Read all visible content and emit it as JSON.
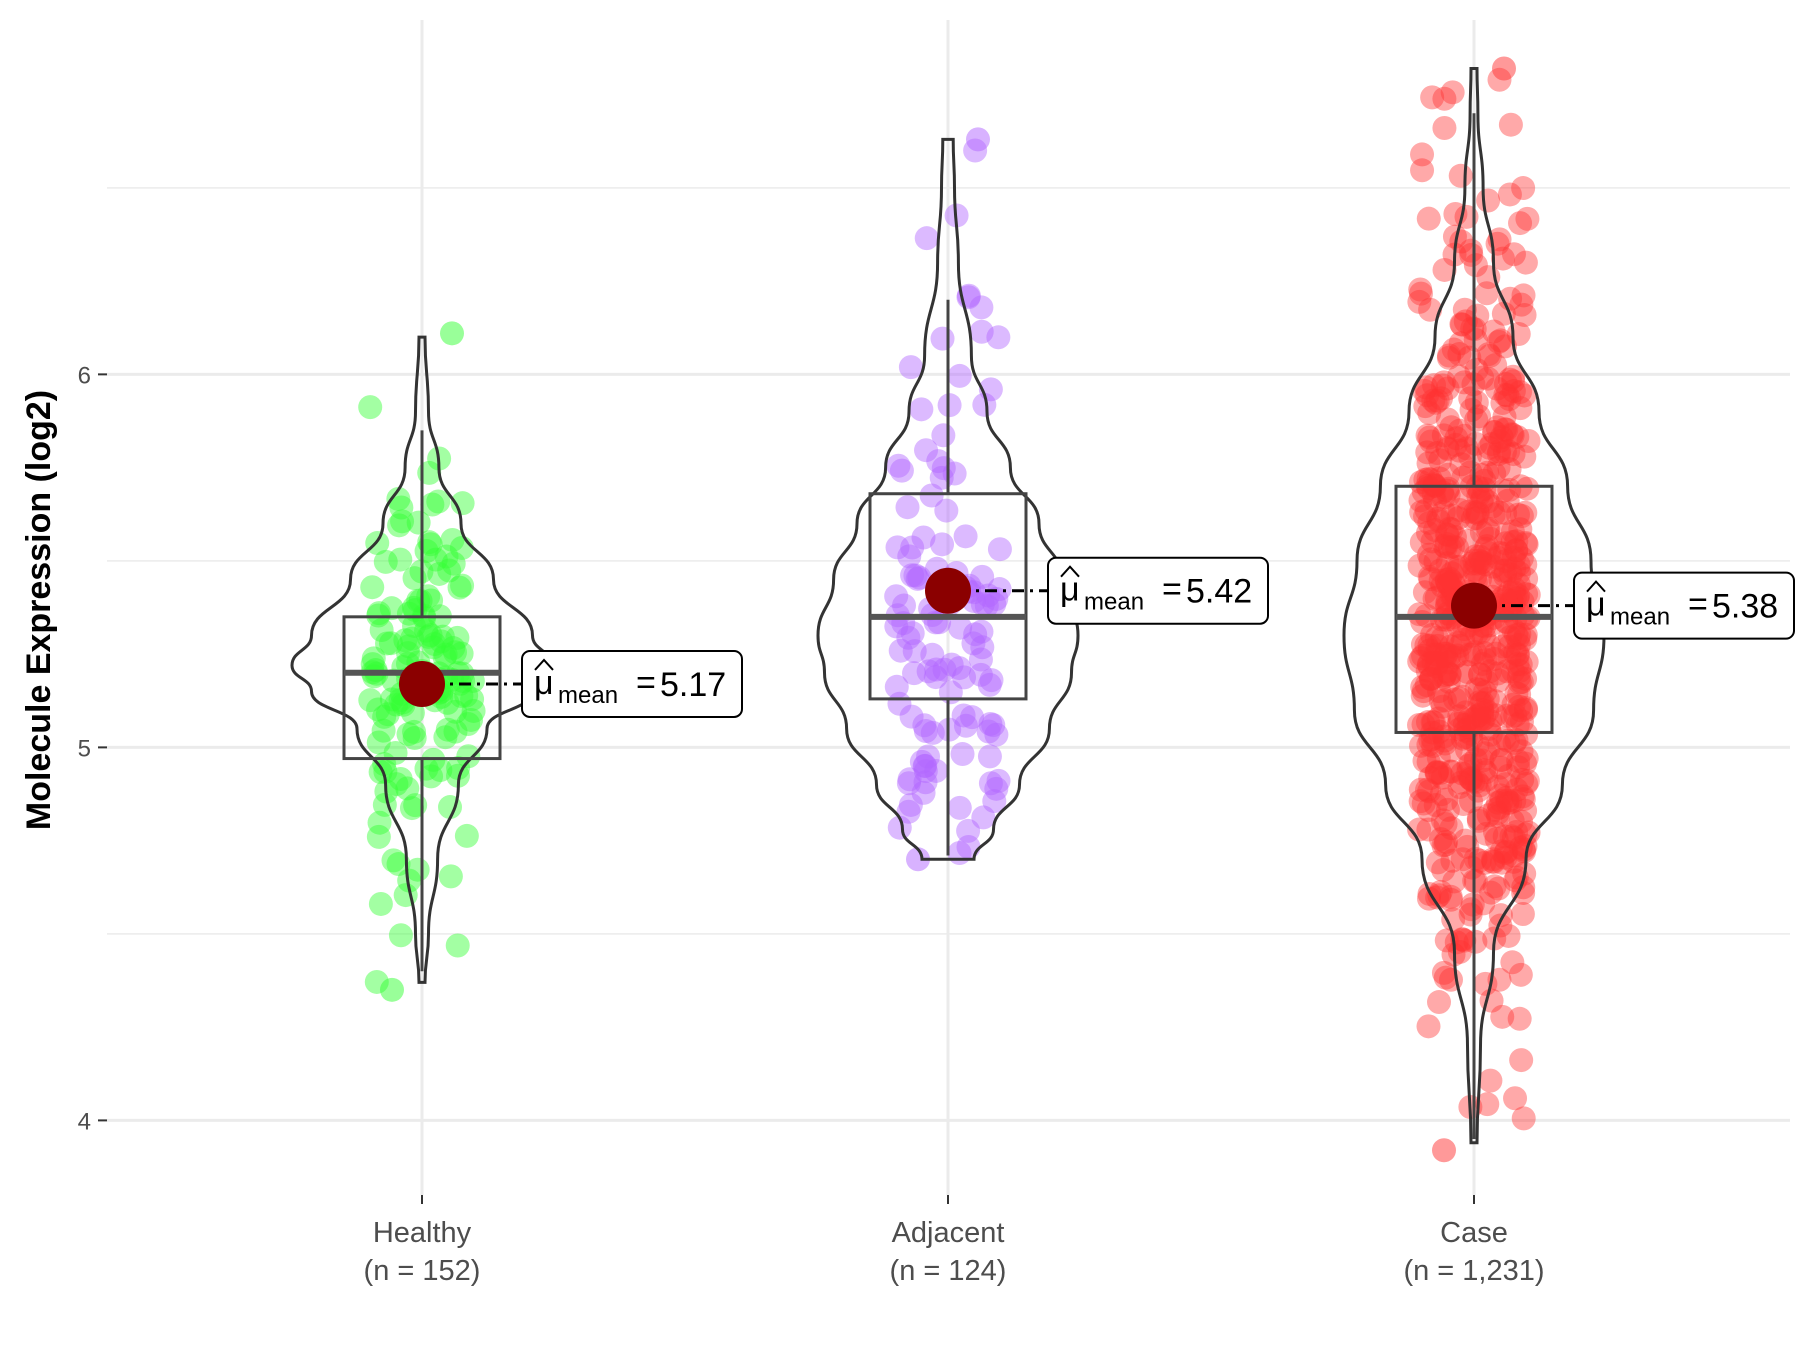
{
  "chart_data": {
    "type": "violin",
    "ylabel": "Molecule Expression (log2)",
    "xlabel": "",
    "ylim": [
      3.8,
      6.95
    ],
    "yticks": [
      4,
      5,
      6
    ],
    "grid": true,
    "groups": [
      {
        "name": "Healthy",
        "n_label": "(n = 152)",
        "n": 152,
        "color": "#33ff33",
        "mean": 5.17,
        "mean_label": "5.17",
        "median": 5.2,
        "q1": 4.97,
        "q3": 5.35,
        "whisker_low": 4.4,
        "whisker_high": 5.85,
        "min": 4.35,
        "max": 6.11,
        "violin_profile": [
          [
            4.37,
            0.02
          ],
          [
            4.5,
            0.05
          ],
          [
            4.7,
            0.12
          ],
          [
            4.9,
            0.28
          ],
          [
            5.05,
            0.5
          ],
          [
            5.15,
            0.85
          ],
          [
            5.22,
            1.0
          ],
          [
            5.3,
            0.85
          ],
          [
            5.45,
            0.55
          ],
          [
            5.6,
            0.3
          ],
          [
            5.75,
            0.13
          ],
          [
            5.9,
            0.05
          ],
          [
            6.1,
            0.02
          ]
        ]
      },
      {
        "name": "Adjacent",
        "n_label": "(n = 124)",
        "n": 124,
        "color": "#b266ff",
        "mean": 5.42,
        "mean_label": "5.42",
        "median": 5.35,
        "q1": 5.13,
        "q3": 5.68,
        "whisker_low": 4.71,
        "whisker_high": 6.2,
        "min": 4.7,
        "max": 6.63,
        "violin_profile": [
          [
            4.7,
            0.2
          ],
          [
            4.78,
            0.35
          ],
          [
            4.9,
            0.55
          ],
          [
            5.05,
            0.78
          ],
          [
            5.2,
            0.95
          ],
          [
            5.3,
            1.0
          ],
          [
            5.45,
            0.88
          ],
          [
            5.6,
            0.7
          ],
          [
            5.75,
            0.48
          ],
          [
            5.9,
            0.3
          ],
          [
            6.05,
            0.18
          ],
          [
            6.3,
            0.08
          ],
          [
            6.5,
            0.05
          ],
          [
            6.63,
            0.04
          ]
        ]
      },
      {
        "name": "Case",
        "n_label": "(n = 1,231)",
        "n": 1231,
        "color": "#ff3333",
        "mean": 5.38,
        "mean_label": "5.38",
        "median": 5.35,
        "q1": 5.04,
        "q3": 5.7,
        "whisker_low": 3.95,
        "whisker_high": 6.7,
        "min": 3.92,
        "max": 6.82,
        "violin_profile": [
          [
            3.94,
            0.01
          ],
          [
            4.2,
            0.05
          ],
          [
            4.45,
            0.15
          ],
          [
            4.7,
            0.4
          ],
          [
            4.9,
            0.68
          ],
          [
            5.1,
            0.92
          ],
          [
            5.3,
            1.0
          ],
          [
            5.5,
            0.9
          ],
          [
            5.7,
            0.72
          ],
          [
            5.9,
            0.5
          ],
          [
            6.1,
            0.3
          ],
          [
            6.3,
            0.15
          ],
          [
            6.5,
            0.07
          ],
          [
            6.7,
            0.03
          ],
          [
            6.82,
            0.01
          ]
        ]
      }
    ],
    "mean_symbol": "μ",
    "mean_subscript": "mean",
    "mean_equals": "="
  }
}
